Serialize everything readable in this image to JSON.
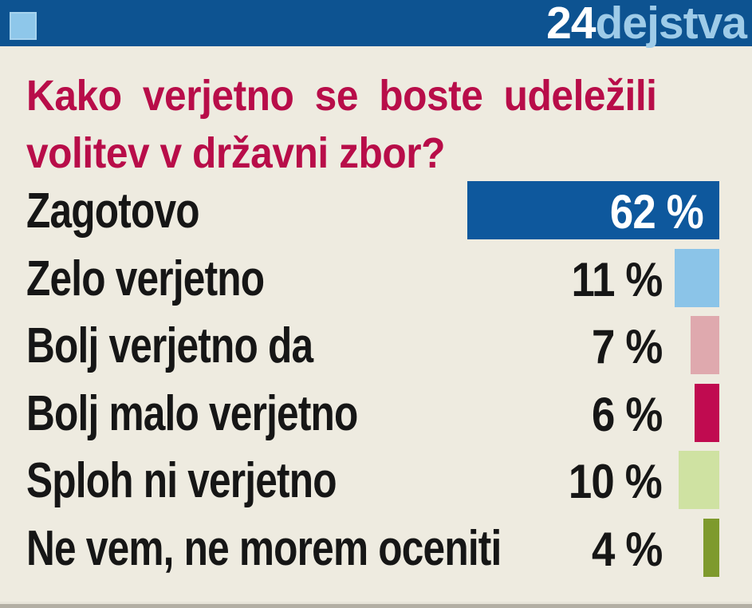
{
  "header": {
    "brand_prefix": "24",
    "brand_suffix": "dejstva"
  },
  "title": {
    "line1": "Kako verjetno se boste udeležili",
    "line2": "volitev v državni zbor?"
  },
  "palette": {
    "header_bg": "#0d5391",
    "logo_square": "#8ec7ea",
    "brand_prefix_color": "#ffffff",
    "brand_suffix_color": "#9ecbe8",
    "background": "#eeebe0",
    "title_color": "#b80d49",
    "text_color": "#161616",
    "value_inside_color": "#ffffff",
    "footer_strip": "#b3afa4"
  },
  "chart_data": {
    "type": "bar",
    "orientation": "horizontal",
    "title": "Kako verjetno se boste udeležili volitev v državni zbor?",
    "categories": [
      "Zagotovo",
      "Zelo verjetno",
      "Bolj verjetno da",
      "Bolj malo verjetno",
      "Sploh ni verjetno",
      "Ne vem, ne morem oceniti"
    ],
    "values": [
      62,
      11,
      7,
      6,
      10,
      4
    ],
    "value_labels": [
      "62 %",
      "11 %",
      "7 %",
      "6 %",
      "10 %",
      "4 %"
    ],
    "bar_colors": [
      "#0e589d",
      "#8bc4e8",
      "#dfa9ae",
      "#c00b50",
      "#cfe2a2",
      "#7e9a2d"
    ],
    "xlim": [
      0,
      100
    ],
    "value_suffix": " %",
    "grid": false,
    "legend": false,
    "bars_right_aligned": true
  }
}
